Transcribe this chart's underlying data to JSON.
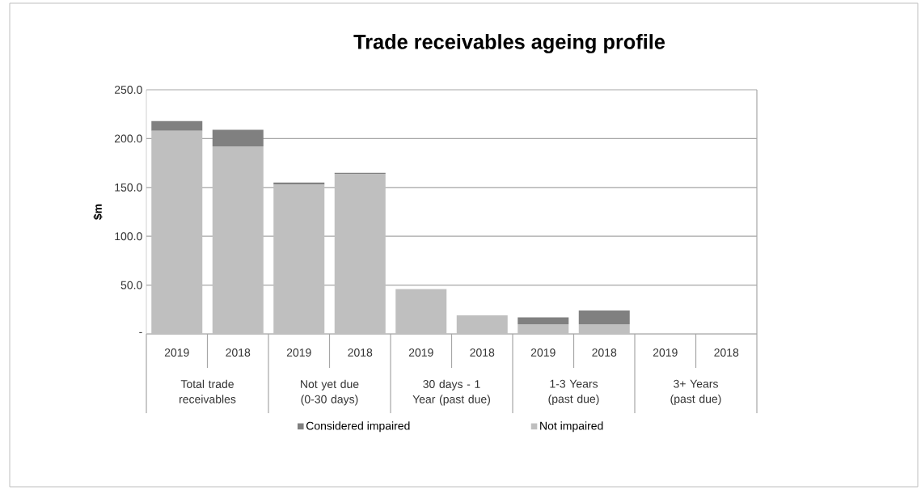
{
  "chart_data": {
    "type": "bar",
    "title": "Trade receivables ageing profile",
    "ylabel": "$m",
    "categories": [
      "2019",
      "2018",
      "2019",
      "2018",
      "2019",
      "2018",
      "2019",
      "2018",
      "2019",
      "2018"
    ],
    "annotations": [
      "Total trade receivables",
      "Not yet due (0-30 days)",
      "30 days - 1 Year (past due)",
      "1-3 Years (past due)",
      "3+ Years (past due)"
    ],
    "stacked": true,
    "series": [
      {
        "name": "Not impaired",
        "color": "#bfbfbf",
        "values": [
          208,
          192,
          153,
          164,
          46,
          19,
          10,
          10,
          0,
          0
        ]
      },
      {
        "name": "Considered impaired",
        "color": "#808080",
        "values": [
          10,
          17,
          2,
          1,
          0,
          0,
          7,
          14,
          0,
          0
        ]
      }
    ],
    "ylim": [
      0,
      250
    ],
    "yticks": [
      {
        "value": 0,
        "label": "-"
      },
      {
        "value": 50,
        "label": "50.0"
      },
      {
        "value": 100,
        "label": "100.0"
      },
      {
        "value": 150,
        "label": "150.0"
      },
      {
        "value": 200,
        "label": "200.0"
      },
      {
        "value": 250,
        "label": "250.0"
      }
    ],
    "grid": "y",
    "legend": "bottom"
  }
}
